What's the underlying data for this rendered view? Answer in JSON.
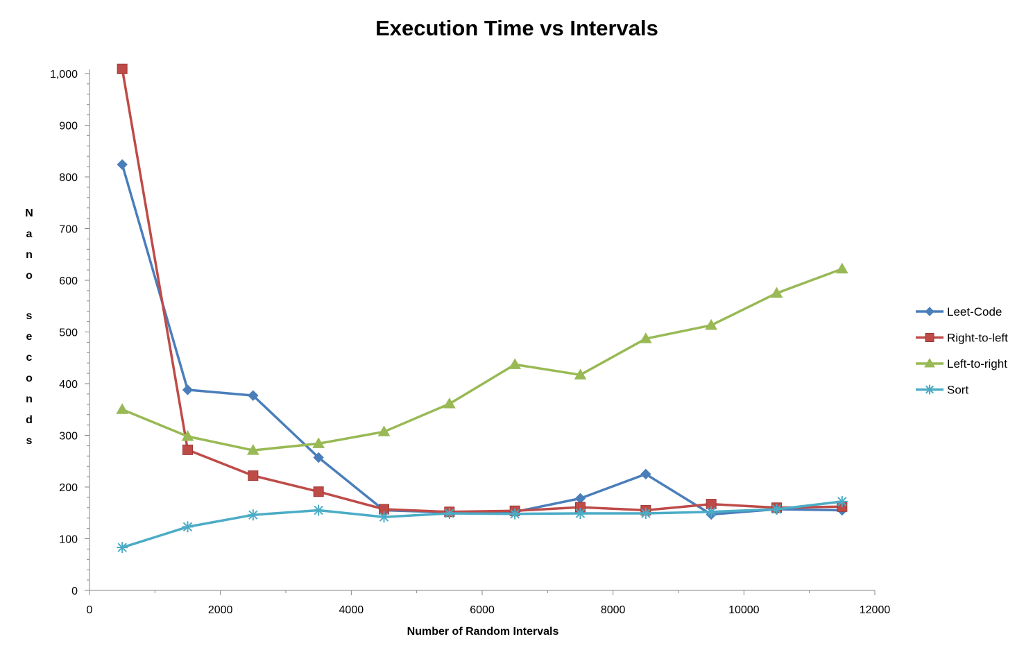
{
  "chart_data": {
    "type": "line",
    "title": "Execution Time vs Intervals",
    "xlabel": "Number of Random Intervals",
    "ylabel": "Nano seconds",
    "xlim": [
      0,
      12000
    ],
    "ylim": [
      0,
      1000
    ],
    "x_ticks": [
      0,
      2000,
      4000,
      6000,
      8000,
      10000,
      12000
    ],
    "x_tick_labels": [
      "0",
      "2000",
      "4000",
      "6000",
      "8000",
      "10000",
      "12000"
    ],
    "y_ticks": [
      0,
      100,
      200,
      300,
      400,
      500,
      600,
      700,
      800,
      900,
      1000
    ],
    "y_tick_labels": [
      "0",
      "100",
      "200",
      "300",
      "400",
      "500",
      "600",
      "700",
      "800",
      "900",
      "1,000"
    ],
    "grid": false,
    "legend_position": "right",
    "x": [
      500,
      1500,
      2500,
      3500,
      4500,
      5500,
      6500,
      7500,
      8500,
      9500,
      10500,
      11500
    ],
    "series": [
      {
        "name": "Leet-Code",
        "color": "#4a7ebb",
        "marker": "diamond",
        "values": [
          824,
          388,
          377,
          257,
          155,
          151,
          152,
          178,
          225,
          147,
          157,
          155
        ]
      },
      {
        "name": "Right-to-left",
        "color": "#be4b48",
        "marker": "square",
        "values": [
          1009,
          272,
          222,
          191,
          157,
          152,
          154,
          161,
          155,
          167,
          160,
          162
        ]
      },
      {
        "name": "Left-to-right",
        "color": "#98b954",
        "marker": "triangle",
        "values": [
          350,
          298,
          271,
          284,
          307,
          361,
          437,
          417,
          487,
          513,
          575,
          622
        ]
      },
      {
        "name": "Sort",
        "color": "#4bacc6",
        "marker": "asterisk",
        "values": [
          83,
          123,
          146,
          155,
          142,
          149,
          148,
          149,
          149,
          152,
          157,
          172
        ]
      }
    ]
  }
}
